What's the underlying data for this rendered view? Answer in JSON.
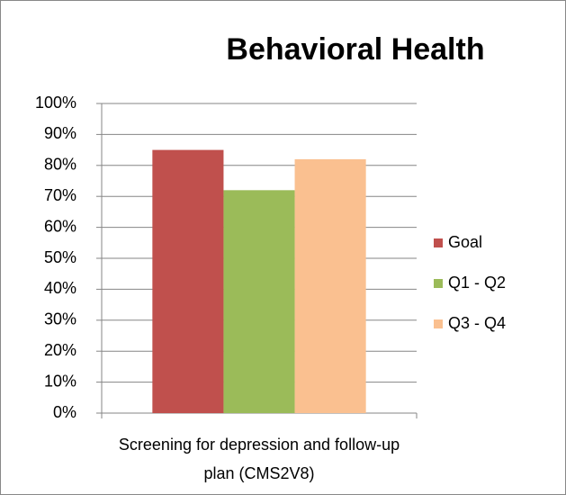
{
  "chart_data": {
    "type": "bar",
    "title": "Behavioral Health",
    "categories": [
      "Screening for depression and follow-up plan (CMS2V8)"
    ],
    "series": [
      {
        "name": "Goal",
        "color": "#c0504d",
        "values": [
          85
        ]
      },
      {
        "name": "Q1 - Q2",
        "color": "#9bbb59",
        "values": [
          72
        ]
      },
      {
        "name": "Q3 - Q4",
        "color": "#fac090",
        "values": [
          82
        ]
      }
    ],
    "ylim": [
      0,
      100
    ],
    "yticks": [
      {
        "value": 0,
        "label": "0%"
      },
      {
        "value": 10,
        "label": "10%"
      },
      {
        "value": 20,
        "label": "20%"
      },
      {
        "value": 30,
        "label": "30%"
      },
      {
        "value": 40,
        "label": "40%"
      },
      {
        "value": 50,
        "label": "50%"
      },
      {
        "value": 60,
        "label": "60%"
      },
      {
        "value": 70,
        "label": "70%"
      },
      {
        "value": 80,
        "label": "80%"
      },
      {
        "value": 90,
        "label": "90%"
      },
      {
        "value": 100,
        "label": "100%"
      }
    ],
    "grid": true,
    "legend": "right"
  }
}
